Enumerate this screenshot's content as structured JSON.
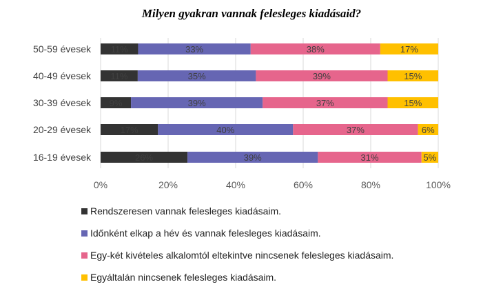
{
  "chart_data": {
    "type": "bar",
    "orientation": "horizontal",
    "stacked": "percent",
    "title": "Milyen gyakran vannak felesleges kiadásaid?",
    "categories": [
      "50-59 évesek",
      "40-49 évesek",
      "30-39 évesek",
      "20-29 évesek",
      "16-19 évesek"
    ],
    "series": [
      {
        "name": "Rendszeresen vannak felesleges kiadásaim.",
        "color": "#333333",
        "values": [
          11,
          11,
          9,
          17,
          26
        ],
        "labels": [
          "11%",
          "11%",
          "9%",
          "17%",
          "26%"
        ]
      },
      {
        "name": "Időnként elkap a hév és vannak felesleges kiadásaim.",
        "color": "#6666b3",
        "values": [
          33,
          35,
          39,
          40,
          39
        ],
        "labels": [
          "33%",
          "35%",
          "39%",
          "40%",
          "39%"
        ]
      },
      {
        "name": "Egy-két kivételes alkalomtól eltekintve nincsenek felesleges kiadásaim.",
        "color": "#e6658c",
        "values": [
          38,
          39,
          37,
          37,
          31
        ],
        "labels": [
          "38%",
          "39%",
          "37%",
          "37%",
          "31%"
        ]
      },
      {
        "name": "Egyáltalán nincsenek felesleges kiadásaim.",
        "color": "#ffc000",
        "values": [
          17,
          15,
          15,
          6,
          5
        ],
        "labels": [
          "17%",
          "15%",
          "15%",
          "6%",
          "5%"
        ]
      }
    ],
    "x_ticks": [
      "0%",
      "20%",
      "40%",
      "60%",
      "80%",
      "100%"
    ],
    "xlim": [
      0,
      100
    ],
    "legend_position": "bottom",
    "grid": true
  }
}
